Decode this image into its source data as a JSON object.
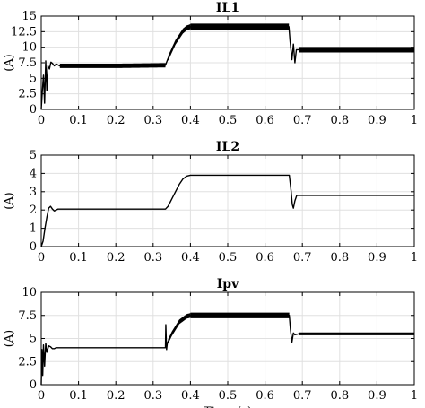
{
  "chart_data": [
    {
      "type": "line",
      "title": "IL1",
      "ylabel": "(A)",
      "xlabel": "",
      "xlim": [
        0,
        1
      ],
      "ylim": [
        0,
        15
      ],
      "grid": true,
      "x_ticks": [
        "0",
        "0.1",
        "0.2",
        "0.3",
        "0.4",
        "0.5",
        "0.6",
        "0.7",
        "0.8",
        "0.9",
        "1"
      ],
      "y_ticks": [
        "0",
        "2.5",
        "5",
        "7.5",
        "10",
        "12.5",
        "15"
      ],
      "series": [
        {
          "x": [
            0,
            0.003,
            0.006,
            0.009,
            0.012,
            0.015,
            0.018,
            0.022,
            0.026,
            0.03,
            0.035,
            0.04,
            0.05,
            0.1,
            0.2,
            0.333,
            0.34,
            0.36,
            0.38,
            0.39,
            0.4,
            0.5,
            0.6,
            0.664,
            0.667,
            0.672,
            0.676,
            0.68,
            0.684,
            0.69,
            0.7,
            0.8,
            0.9,
            1.0
          ],
          "y": [
            0,
            3.0,
            5.5,
            1.0,
            7.8,
            3.0,
            7.0,
            6.5,
            7.6,
            7.4,
            7.0,
            7.3,
            7.0,
            7.0,
            7.0,
            7.1,
            8.2,
            10.8,
            12.6,
            13.1,
            13.3,
            13.3,
            13.3,
            13.3,
            11.0,
            8.0,
            10.5,
            7.5,
            9.6,
            9.6,
            9.6,
            9.6,
            9.6,
            9.6
          ],
          "ripple": [
            [
              0.05,
              0.333,
              0.35
            ],
            [
              0.34,
              0.4,
              0.4
            ],
            [
              0.4,
              0.664,
              0.5
            ],
            [
              0.69,
              1.0,
              0.45
            ]
          ]
        }
      ]
    },
    {
      "type": "line",
      "title": "IL2",
      "ylabel": "(A)",
      "xlabel": "",
      "xlim": [
        0,
        1
      ],
      "ylim": [
        0,
        5
      ],
      "grid": true,
      "x_ticks": [
        "0",
        "0.1",
        "0.2",
        "0.3",
        "0.4",
        "0.5",
        "0.6",
        "0.7",
        "0.8",
        "0.9",
        "1"
      ],
      "y_ticks": [
        "0",
        "1",
        "2",
        "3",
        "4",
        "5"
      ],
      "series": [
        {
          "x": [
            0,
            0.005,
            0.01,
            0.015,
            0.02,
            0.025,
            0.03,
            0.035,
            0.04,
            0.045,
            0.05,
            0.06,
            0.1,
            0.2,
            0.3,
            0.333,
            0.34,
            0.35,
            0.36,
            0.37,
            0.38,
            0.39,
            0.4,
            0.5,
            0.6,
            0.665,
            0.67,
            0.673,
            0.676,
            0.68,
            0.685,
            0.69,
            0.7,
            0.8,
            0.9,
            1.0
          ],
          "y": [
            0,
            0.3,
            1.0,
            1.6,
            2.1,
            2.2,
            2.05,
            1.95,
            2.0,
            2.05,
            2.05,
            2.05,
            2.05,
            2.05,
            2.05,
            2.05,
            2.2,
            2.6,
            3.0,
            3.4,
            3.7,
            3.85,
            3.9,
            3.9,
            3.9,
            3.9,
            3.0,
            2.3,
            2.1,
            2.5,
            2.8,
            2.8,
            2.8,
            2.8,
            2.8,
            2.8
          ]
        }
      ]
    },
    {
      "type": "line",
      "title": "Ipv",
      "ylabel": "(A)",
      "xlabel": "Time (s)",
      "xlim": [
        0,
        1
      ],
      "ylim": [
        0,
        10
      ],
      "grid": true,
      "x_ticks": [
        "0",
        "0.1",
        "0.2",
        "0.3",
        "0.4",
        "0.5",
        "0.6",
        "0.7",
        "0.8",
        "0.9",
        "1"
      ],
      "y_ticks": [
        "0",
        "2.5",
        "5",
        "7.5",
        "10"
      ],
      "series": [
        {
          "x": [
            0,
            0.002,
            0.004,
            0.006,
            0.009,
            0.012,
            0.015,
            0.02,
            0.025,
            0.03,
            0.035,
            0.04,
            0.05,
            0.1,
            0.2,
            0.333,
            0.334,
            0.336,
            0.338,
            0.35,
            0.37,
            0.39,
            0.4,
            0.5,
            0.6,
            0.665,
            0.668,
            0.672,
            0.676,
            0.68,
            0.69,
            0.7,
            0.8,
            0.9,
            1.0
          ],
          "y": [
            0,
            3.8,
            1.0,
            4.3,
            2.0,
            4.5,
            3.5,
            4.2,
            4.1,
            3.9,
            3.9,
            4.0,
            4.0,
            4.0,
            4.0,
            4.0,
            6.5,
            3.8,
            4.5,
            5.5,
            6.8,
            7.4,
            7.5,
            7.5,
            7.5,
            7.5,
            6.0,
            4.6,
            5.6,
            5.4,
            5.5,
            5.5,
            5.5,
            5.5,
            5.5
          ],
          "ripple": [
            [
              0.34,
              0.4,
              0.25
            ],
            [
              0.4,
              0.665,
              0.3
            ],
            [
              0.69,
              1.0,
              0.15
            ]
          ]
        }
      ]
    }
  ]
}
